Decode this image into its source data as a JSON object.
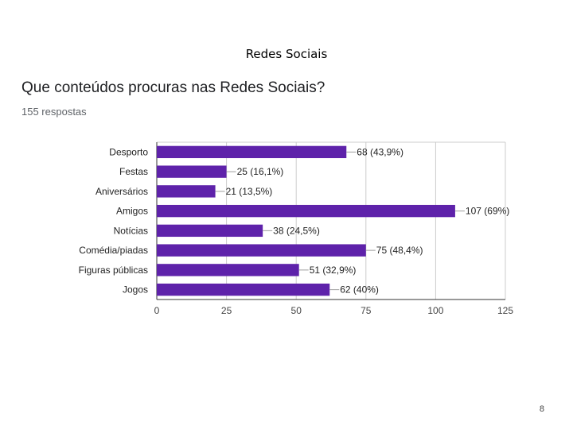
{
  "slide": {
    "title": "Redes Sociais",
    "question": "Que conteúdos procuras nas Redes Sociais?",
    "responses": "155 respostas",
    "page_number": "8"
  },
  "chart_data": {
    "type": "bar",
    "orientation": "horizontal",
    "categories": [
      "Desporto",
      "Festas",
      "Aniversários",
      "Amigos",
      "Notícias",
      "Comédia/piadas",
      "Figuras públicas",
      "Jogos"
    ],
    "values": [
      68,
      25,
      21,
      107,
      38,
      75,
      51,
      62
    ],
    "data_labels": [
      "68 (43,9%)",
      "25 (16,1%)",
      "21 (13,5%)",
      "107 (69%)",
      "38 (24,5%)",
      "75 (48,4%)",
      "51 (32,9%)",
      "62 (40%)"
    ],
    "xlim": [
      0,
      125
    ],
    "xticks": [
      0,
      25,
      50,
      75,
      100,
      125
    ],
    "grid": true,
    "bar_color": "#5e22aa"
  }
}
